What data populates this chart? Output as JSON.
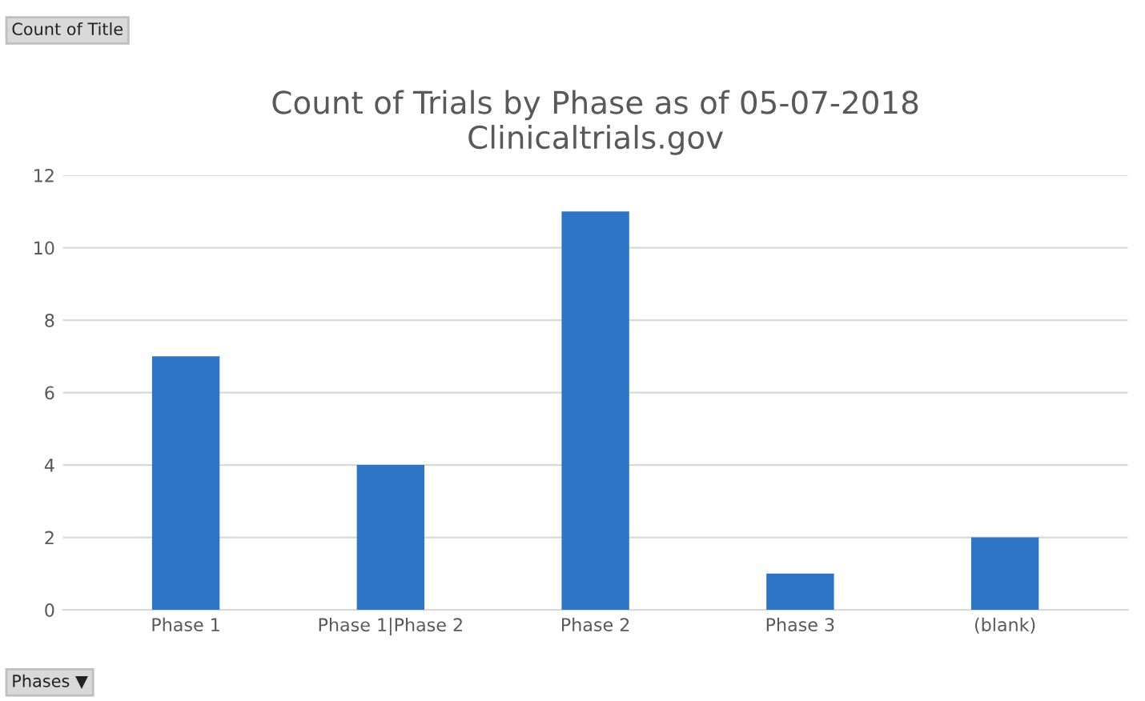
{
  "chart_data": {
    "type": "bar",
    "title": "Count of Trials by Phase as of 05-07-2018\nClinicaltrials.gov",
    "categories": [
      "Phase 1",
      "Phase 1|Phase 2",
      "Phase 2",
      "Phase 3",
      "(blank)"
    ],
    "values": [
      7,
      4,
      11,
      1,
      2
    ],
    "color": "#2e75c6",
    "ylim": [
      0,
      12
    ],
    "yticks": [
      0,
      2,
      4,
      6,
      8,
      10,
      12
    ],
    "grid": "y",
    "annotations": [
      "Count of Title",
      "Phases ▼"
    ]
  }
}
